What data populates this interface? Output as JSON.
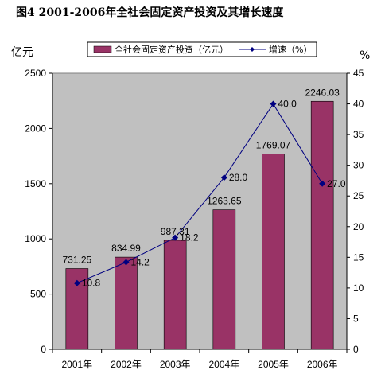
{
  "chart_data": {
    "type": "bar",
    "title": "图4    2001-2006年全社会固定资产投资及其增长速度",
    "left_unit": "亿元",
    "right_unit": "%",
    "categories": [
      "2001年",
      "2002年",
      "2003年",
      "2004年",
      "2005年",
      "2006年"
    ],
    "series": [
      {
        "name": "全社会固定资产投资（亿元）",
        "type": "bar",
        "axis": "left",
        "color": "#993366",
        "values": [
          731.25,
          834.99,
          987.31,
          1263.65,
          1769.07,
          2246.03
        ],
        "labels": [
          "731.25",
          "834.99",
          "987.31",
          "1263.65",
          "1769.07",
          "2246.03"
        ]
      },
      {
        "name": "增速（%）",
        "type": "line",
        "axis": "right",
        "color": "#000080",
        "values": [
          10.8,
          14.2,
          18.2,
          28.0,
          40.0,
          27.0
        ],
        "labels": [
          "10.8",
          "14.2",
          "18.2",
          "28.0",
          "40.0",
          "27.0"
        ]
      }
    ],
    "left_axis": {
      "ylim": [
        0,
        2500
      ],
      "ticks": [
        0,
        500,
        1000,
        1500,
        2000,
        2500
      ]
    },
    "right_axis": {
      "ylim": [
        0,
        45
      ],
      "ticks": [
        0,
        5,
        10,
        15,
        20,
        25,
        30,
        35,
        40,
        45
      ]
    },
    "plot_background": "#c0c0c0",
    "grid": false,
    "legend_position": "top"
  }
}
